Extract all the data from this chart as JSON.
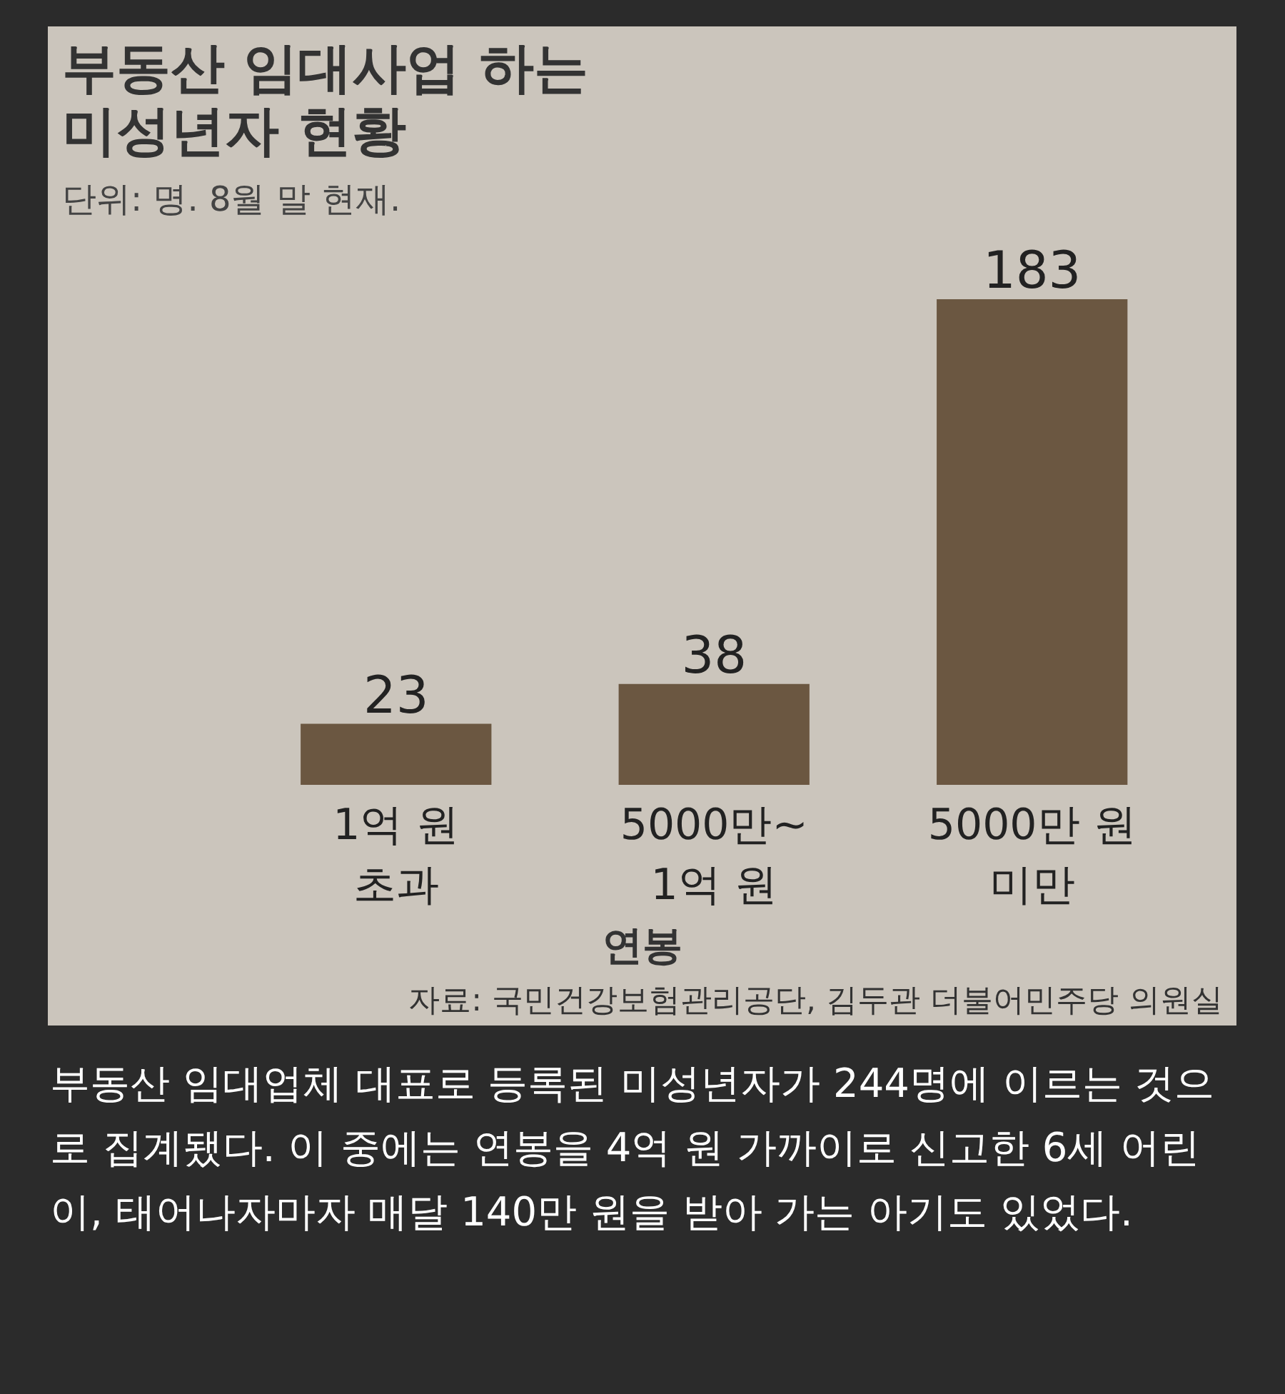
{
  "chart_data": {
    "type": "bar",
    "title": "부동산 임대사업 하는 미성년자 현황",
    "subtitle": "단위: 명. 8월 말 현재.",
    "xlabel": "연봉",
    "categories": [
      "1억 원\n초과",
      "5000만~\n1억 원",
      "5000만 원\n미만"
    ],
    "values": [
      23,
      38,
      183
    ],
    "color": "#6b5741",
    "data_labels": true,
    "tick_labels": "x",
    "annotations": [
      "자료: 국민건강보험관리공단, 김두관 더불어민주당 의원실",
      "부동산 임대업체 대표로 등록된 미성년자가 244명에 이르는 것으로 집계됐다. 이 중에는 연봉을 4억 원 가까이로 신고한 6세 어린이, 태어나자마자 매달 140만 원을 받아 가는 아기도 있었다."
    ]
  }
}
